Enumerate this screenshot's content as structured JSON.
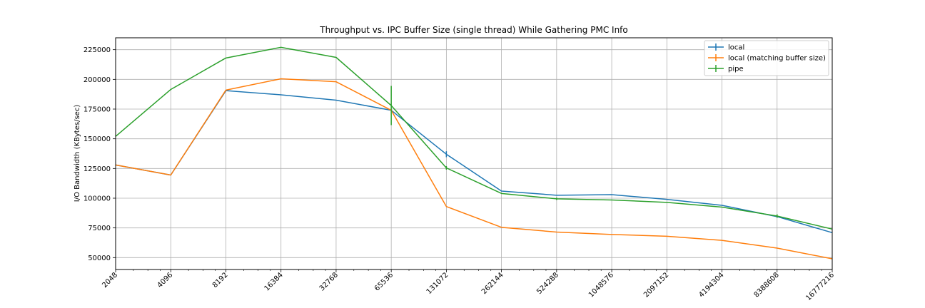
{
  "chart_data": {
    "type": "line",
    "title": "Throughput vs. IPC Buffer Size (single thread) While Gathering PMC Info",
    "xlabel": "",
    "ylabel": "I/O Bandwidth (KBytes/sec)",
    "x_scale": "log2",
    "x": [
      2048,
      4096,
      8192,
      16384,
      32768,
      65536,
      131072,
      262144,
      524288,
      1048576,
      2097152,
      4194304,
      8388608,
      16777216
    ],
    "x_tick_labels": [
      "2048",
      "4096",
      "8192",
      "16384",
      "32768",
      "65536",
      "131072",
      "262144",
      "524288",
      "1048576",
      "2097152",
      "4194304",
      "8388608",
      "16777216"
    ],
    "ylim": [
      40000,
      235000
    ],
    "y_ticks": [
      50000,
      75000,
      100000,
      125000,
      150000,
      175000,
      200000,
      225000
    ],
    "y_tick_labels": [
      "50000",
      "75000",
      "100000",
      "125000",
      "150000",
      "175000",
      "200000",
      "225000"
    ],
    "grid": true,
    "legend_position": "top-right",
    "series": [
      {
        "name": "local",
        "color": "#1f77b4",
        "values": [
          128000,
          119500,
          190500,
          187000,
          182500,
          174000,
          137000,
          106000,
          102500,
          103000,
          99000,
          94000,
          84500,
          71000
        ],
        "errors": [
          0,
          0,
          0,
          0,
          0,
          0,
          2500,
          0,
          0,
          0,
          0,
          0,
          0,
          0
        ]
      },
      {
        "name": "local (matching buffer size)",
        "color": "#ff7f0e",
        "values": [
          128000,
          119500,
          191000,
          200500,
          198000,
          174000,
          93000,
          75500,
          71500,
          69500,
          68000,
          64500,
          58000,
          49000
        ],
        "errors": [
          0,
          0,
          0,
          0,
          0,
          0,
          0,
          0,
          0,
          0,
          0,
          0,
          0,
          0
        ]
      },
      {
        "name": "pipe",
        "color": "#2ca02c",
        "values": [
          152000,
          191500,
          218000,
          227000,
          218500,
          178000,
          125500,
          104000,
          99500,
          98500,
          96500,
          92500,
          85000,
          74000
        ],
        "errors": [
          0,
          0,
          0,
          0,
          0,
          16500,
          1500,
          0,
          1000,
          0,
          0,
          0,
          1500,
          0
        ]
      }
    ]
  }
}
